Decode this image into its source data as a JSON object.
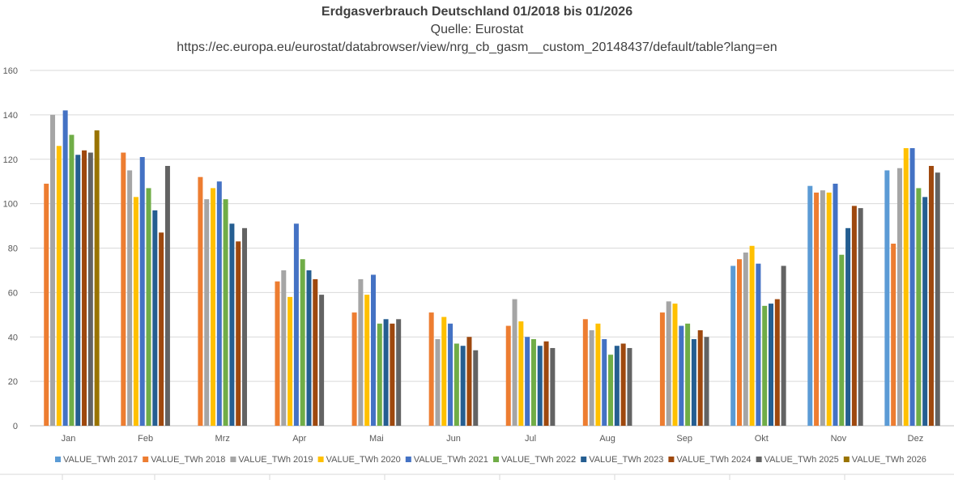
{
  "chart_data": {
    "type": "bar",
    "title": "Erdgasverbrauch Deutschland 01/2018 bis 01/2026",
    "subtitle": "Quelle: Eurostat",
    "source": "https://ec.europa.eu/eurostat/databrowser/view/nrg_cb_gasm__custom_20148437/default/table?lang=en",
    "xlabel": "",
    "ylabel": "",
    "ylim": [
      0,
      160
    ],
    "yticks": [
      0,
      20,
      40,
      60,
      80,
      100,
      120,
      140,
      160
    ],
    "grid": true,
    "legend_position": "bottom",
    "categories": [
      "Jan",
      "Feb",
      "Mrz",
      "Apr",
      "Mai",
      "Jun",
      "Jul",
      "Aug",
      "Sep",
      "Okt",
      "Nov",
      "Dez"
    ],
    "series": [
      {
        "name": "VALUE_TWh 2017",
        "color": "#5B9BD5",
        "values": [
          null,
          null,
          null,
          null,
          null,
          null,
          null,
          null,
          null,
          72,
          108,
          115
        ]
      },
      {
        "name": "VALUE_TWh 2018",
        "color": "#ED7D31",
        "values": [
          109,
          123,
          112,
          65,
          51,
          51,
          45,
          48,
          51,
          75,
          105,
          82
        ]
      },
      {
        "name": "VALUE_TWh 2019",
        "color": "#A5A5A5",
        "values": [
          140,
          115,
          102,
          70,
          66,
          39,
          57,
          43,
          56,
          78,
          106,
          116
        ]
      },
      {
        "name": "VALUE_TWh 2020",
        "color": "#FFC000",
        "values": [
          126,
          103,
          107,
          58,
          59,
          49,
          47,
          46,
          55,
          81,
          105,
          125
        ]
      },
      {
        "name": "VALUE_TWh 2021",
        "color": "#4472C4",
        "values": [
          142,
          121,
          110,
          91,
          68,
          46,
          40,
          39,
          45,
          73,
          109,
          125
        ]
      },
      {
        "name": "VALUE_TWh 2022",
        "color": "#70AD47",
        "values": [
          131,
          107,
          102,
          75,
          46,
          37,
          39,
          32,
          46,
          54,
          77,
          107
        ]
      },
      {
        "name": "VALUE_TWh 2023",
        "color": "#255E91",
        "values": [
          122,
          97,
          91,
          70,
          48,
          36,
          36,
          36,
          39,
          55,
          89,
          103
        ]
      },
      {
        "name": "VALUE_TWh 2024",
        "color": "#9E480E",
        "values": [
          124,
          87,
          83,
          66,
          46,
          40,
          38,
          37,
          43,
          57,
          99,
          117
        ]
      },
      {
        "name": "VALUE_TWh 2025",
        "color": "#636363",
        "values": [
          123,
          117,
          89,
          59,
          48,
          34,
          35,
          35,
          40,
          72,
          98,
          114
        ]
      },
      {
        "name": "VALUE_TWh 2026",
        "color": "#997300",
        "values": [
          133,
          null,
          null,
          null,
          null,
          null,
          null,
          null,
          null,
          null,
          null,
          null
        ]
      }
    ]
  }
}
